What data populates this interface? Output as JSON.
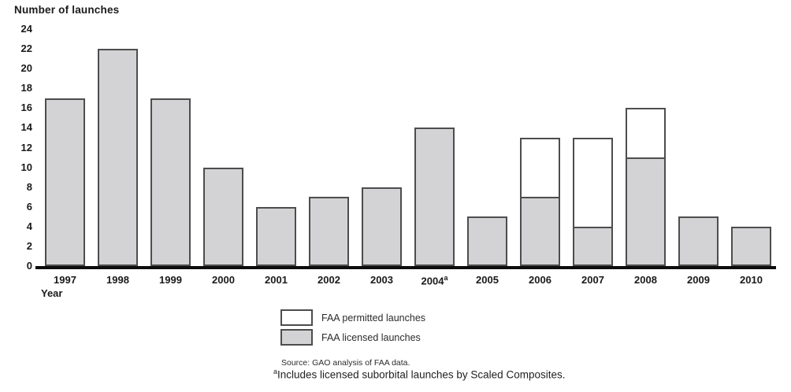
{
  "chart": {
    "title": "Number of launches",
    "xlabel": "Year"
  },
  "chart_data": {
    "type": "bar",
    "stacked": true,
    "title": "Number of launches",
    "xlabel": "Year",
    "ylabel": "Number of launches",
    "ylim": [
      0,
      24
    ],
    "ytick_step": 2,
    "grid": false,
    "legend_position": "bottom",
    "categories": [
      "1997",
      "1998",
      "1999",
      "2000",
      "2001",
      "2002",
      "2003",
      "2004",
      "2005",
      "2006",
      "2007",
      "2008",
      "2009",
      "2010"
    ],
    "category_sup": [
      "",
      "",
      "",
      "",
      "",
      "",
      "",
      "a",
      "",
      "",
      "",
      "",
      "",
      ""
    ],
    "series": [
      {
        "name": "FAA licensed launches",
        "color": "#d3d3d5",
        "values": [
          17,
          22,
          17,
          10,
          6,
          7,
          8,
          14,
          5,
          7,
          4,
          11,
          5,
          4
        ]
      },
      {
        "name": "FAA permitted launches",
        "color": "#ffffff",
        "values": [
          0,
          0,
          0,
          0,
          0,
          0,
          0,
          0,
          0,
          6,
          9,
          5,
          0,
          0
        ]
      }
    ]
  },
  "legend": {
    "items": [
      {
        "label": "FAA permitted launches",
        "swatch": "white"
      },
      {
        "label": "FAA licensed launches",
        "swatch": "gray"
      }
    ]
  },
  "footer": {
    "source": "Source: GAO analysis of FAA data.",
    "footnote_marker": "a",
    "footnote": "Includes licensed suborbital launches by Scaled Composites."
  },
  "colors": {
    "bar_fill": "#d3d3d5",
    "bar_border": "#4d4d4d",
    "baseline": "#0d0d0d"
  }
}
